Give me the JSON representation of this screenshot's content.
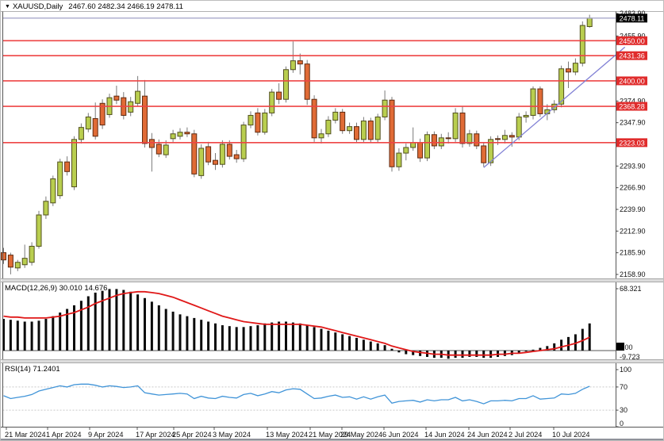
{
  "title": {
    "symbol": "XAUUSD,Daily",
    "ohlc": "2467.60 2482.34 2466.19 2478.11"
  },
  "indicators": {
    "macd": {
      "label": "MACD(12,26,9) 30.010 14.676"
    },
    "rsi": {
      "label": "RSI(14) 71.2401"
    }
  },
  "colors": {
    "bull_fill": "#b9ce4f",
    "bull_stroke": "#51501e",
    "bear_fill": "#e06b36",
    "bear_stroke": "#5f2a10",
    "wick": "#7a7a7a",
    "level_red": "#ee4545",
    "label_box_red": "#e02c2c",
    "price_box_black": "#000000",
    "signal_red": "#e01818",
    "rsi_blue": "#4094d8",
    "trend_blue": "#8181d5",
    "price_line": "#a9a9cc"
  },
  "x_axis": {
    "labels": [
      "21 Mar 2024",
      "1 Apr 2024",
      "9 Apr 2024",
      "17 Apr 2024",
      "25 Apr 2024",
      "3 May 2024",
      "13 May 2024",
      "21 May 2024",
      "29 May 2024",
      "6 Jun 2024",
      "14 Jun 2024",
      "24 Jun 2024",
      "2 Jul 2024",
      "10 Jul 2024"
    ],
    "positions": [
      5,
      57,
      110,
      170,
      216,
      267,
      334,
      388,
      428,
      481,
      534,
      588,
      640,
      695
    ]
  },
  "chart_data": [
    {
      "type": "candlestick",
      "symbol": "XAUUSD",
      "timeframe": "Daily",
      "ohlc_current": {
        "open": 2467.6,
        "high": 2482.34,
        "low": 2466.19,
        "close": 2478.11
      },
      "y_ticks": [
        "2483.90",
        "2455.90",
        "2374.90",
        "2347.90",
        "2293.90",
        "2266.90",
        "2239.90",
        "2212.90",
        "2185.90",
        "2158.90"
      ],
      "ylim": [
        2155,
        2487
      ],
      "horizontal_lines": [
        2450.0,
        2431.36,
        2400.0,
        2368.28,
        2323.03
      ],
      "horizontal_line_labels": [
        "2450.00",
        "2431.36",
        "2400.00",
        "2368.28",
        "2323.03"
      ],
      "current_price": 2478.11,
      "current_price_label": "2478.11",
      "trendline": {
        "from_index": 68,
        "from_price": 2292,
        "to_index": 88,
        "to_price": 2442
      },
      "candles": [
        [
          2186,
          2192,
          2172,
          2177
        ],
        [
          2183,
          2186,
          2159,
          2168
        ],
        [
          2167,
          2177,
          2163,
          2174
        ],
        [
          2171,
          2196,
          2167,
          2179
        ],
        [
          2174,
          2199,
          2170,
          2194
        ],
        [
          2194,
          2238,
          2191,
          2233
        ],
        [
          2233,
          2256,
          2228,
          2250
        ],
        [
          2248,
          2282,
          2244,
          2278
        ],
        [
          2257,
          2303,
          2253,
          2299
        ],
        [
          2299,
          2306,
          2282,
          2287
        ],
        [
          2268,
          2331,
          2264,
          2327
        ],
        [
          2327,
          2347,
          2322,
          2342
        ],
        [
          2340,
          2360,
          2336,
          2355
        ],
        [
          2353,
          2373,
          2327,
          2331
        ],
        [
          2372,
          2377,
          2340,
          2345
        ],
        [
          2358,
          2384,
          2354,
          2379
        ],
        [
          2381,
          2394,
          2371,
          2376
        ],
        [
          2379,
          2386,
          2352,
          2357
        ],
        [
          2361,
          2380,
          2356,
          2374
        ],
        [
          2372,
          2406,
          2368,
          2387
        ],
        [
          2381,
          2401,
          2317,
          2322
        ],
        [
          2327,
          2335,
          2287,
          2317
        ],
        [
          2321,
          2327,
          2305,
          2309
        ],
        [
          2308,
          2326,
          2304,
          2320
        ],
        [
          2328,
          2339,
          2324,
          2334
        ],
        [
          2331,
          2341,
          2327,
          2336
        ],
        [
          2336,
          2342,
          2330,
          2334
        ],
        [
          2334,
          2339,
          2280,
          2284
        ],
        [
          2282,
          2321,
          2278,
          2316
        ],
        [
          2318,
          2324,
          2295,
          2299
        ],
        [
          2301,
          2310,
          2289,
          2296
        ],
        [
          2296,
          2326,
          2292,
          2321
        ],
        [
          2321,
          2326,
          2302,
          2306
        ],
        [
          2308,
          2314,
          2298,
          2303
        ],
        [
          2303,
          2349,
          2299,
          2345
        ],
        [
          2345,
          2362,
          2341,
          2357
        ],
        [
          2360,
          2366,
          2332,
          2336
        ],
        [
          2336,
          2365,
          2333,
          2360
        ],
        [
          2360,
          2390,
          2356,
          2386
        ],
        [
          2386,
          2397,
          2371,
          2377
        ],
        [
          2377,
          2418,
          2373,
          2414
        ],
        [
          2414,
          2449,
          2410,
          2425
        ],
        [
          2425,
          2434,
          2408,
          2421
        ],
        [
          2421,
          2426,
          2370,
          2377
        ],
        [
          2377,
          2382,
          2324,
          2329
        ],
        [
          2329,
          2340,
          2322,
          2334
        ],
        [
          2334,
          2356,
          2330,
          2351
        ],
        [
          2351,
          2366,
          2347,
          2361
        ],
        [
          2361,
          2365,
          2334,
          2338
        ],
        [
          2338,
          2348,
          2334,
          2343
        ],
        [
          2343,
          2348,
          2323,
          2327
        ],
        [
          2327,
          2355,
          2323,
          2350
        ],
        [
          2350,
          2354,
          2323,
          2327
        ],
        [
          2327,
          2359,
          2323,
          2355
        ],
        [
          2355,
          2388,
          2351,
          2376
        ],
        [
          2376,
          2380,
          2287,
          2293
        ],
        [
          2293,
          2316,
          2288,
          2310
        ],
        [
          2310,
          2322,
          2301,
          2317
        ],
        [
          2317,
          2342,
          2313,
          2323
        ],
        [
          2323,
          2328,
          2299,
          2304
        ],
        [
          2304,
          2337,
          2300,
          2333
        ],
        [
          2333,
          2337,
          2315,
          2319
        ],
        [
          2319,
          2334,
          2315,
          2329
        ],
        [
          2329,
          2336,
          2322,
          2328
        ],
        [
          2328,
          2366,
          2324,
          2360
        ],
        [
          2360,
          2368,
          2317,
          2322
        ],
        [
          2322,
          2339,
          2318,
          2334
        ],
        [
          2334,
          2338,
          2315,
          2319
        ],
        [
          2319,
          2323,
          2293,
          2298
        ],
        [
          2298,
          2331,
          2294,
          2327
        ],
        [
          2328,
          2332,
          2320,
          2327
        ],
        [
          2327,
          2339,
          2322,
          2332
        ],
        [
          2332,
          2336,
          2318,
          2330
        ],
        [
          2330,
          2360,
          2326,
          2355
        ],
        [
          2355,
          2362,
          2348,
          2357
        ],
        [
          2357,
          2393,
          2352,
          2390
        ],
        [
          2390,
          2393,
          2355,
          2359
        ],
        [
          2359,
          2371,
          2351,
          2364
        ],
        [
          2364,
          2376,
          2360,
          2371
        ],
        [
          2371,
          2419,
          2367,
          2415
        ],
        [
          2415,
          2424,
          2391,
          2411
        ],
        [
          2411,
          2428,
          2407,
          2422
        ],
        [
          2422,
          2474,
          2418,
          2469
        ],
        [
          2467.6,
          2482.34,
          2466.19,
          2478.11
        ]
      ]
    },
    {
      "type": "bar",
      "name": "MACD",
      "params": "12,26,9",
      "value_main": 30.01,
      "value_signal": 14.676,
      "axis_labels": [
        "68.321",
        "0.00",
        "-9.723"
      ],
      "ylim": [
        -9.723,
        68.321
      ],
      "histogram": [
        35,
        34,
        33,
        32,
        32,
        33,
        35,
        38,
        42,
        46,
        50,
        55,
        60,
        64,
        66,
        68,
        68,
        67,
        65,
        62,
        58,
        54,
        50,
        46,
        43,
        40,
        38,
        36,
        34,
        32,
        30,
        28,
        27,
        26,
        26,
        27,
        28,
        30,
        31,
        32,
        32,
        31,
        30,
        28,
        26,
        24,
        22,
        20,
        18,
        16,
        14,
        12,
        10,
        8,
        6,
        2,
        -2,
        -4,
        -5,
        -6,
        -7,
        -8,
        -8,
        -9,
        -8,
        -8,
        -7,
        -7,
        -8,
        -8,
        -7,
        -6,
        -5,
        -3,
        -1,
        1,
        3,
        5,
        8,
        12,
        15,
        18,
        24,
        30
      ],
      "signal": [
        38,
        37,
        37,
        36,
        36,
        36,
        36,
        37,
        38,
        40,
        42,
        45,
        48,
        52,
        55,
        58,
        61,
        63,
        64,
        65,
        65,
        64,
        63,
        61,
        59,
        56,
        53,
        50,
        47,
        44,
        41,
        38,
        36,
        34,
        32,
        31,
        30,
        29,
        29,
        29,
        29,
        29,
        29,
        28,
        27,
        26,
        24,
        22,
        20,
        18,
        16,
        14,
        12,
        10,
        8,
        5,
        3,
        1,
        -1,
        -2,
        -3,
        -4,
        -4,
        -5,
        -5,
        -5,
        -5,
        -5,
        -5,
        -5,
        -4,
        -4,
        -3,
        -3,
        -2,
        -1,
        0,
        1,
        2,
        4,
        6,
        8,
        11,
        14.7
      ]
    },
    {
      "type": "line",
      "name": "RSI",
      "params": "14",
      "value": 71.2401,
      "axis_labels": [
        "100",
        "70",
        "30",
        "0"
      ],
      "levels": [
        70,
        30
      ],
      "ylim": [
        0,
        100
      ],
      "values": [
        55,
        50,
        52,
        54,
        57,
        63,
        66,
        69,
        72,
        70,
        74,
        75,
        75,
        73,
        70,
        72,
        71,
        69,
        70,
        72,
        60,
        58,
        56,
        57,
        58,
        59,
        58,
        50,
        54,
        51,
        50,
        54,
        52,
        51,
        57,
        59,
        55,
        58,
        62,
        60,
        65,
        67,
        66,
        58,
        50,
        51,
        54,
        56,
        52,
        53,
        49,
        53,
        49,
        53,
        56,
        42,
        45,
        46,
        47,
        44,
        48,
        46,
        48,
        48,
        52,
        46,
        48,
        45,
        41,
        46,
        46,
        47,
        46,
        50,
        50,
        55,
        49,
        50,
        51,
        58,
        57,
        59,
        66,
        71.24
      ]
    }
  ]
}
